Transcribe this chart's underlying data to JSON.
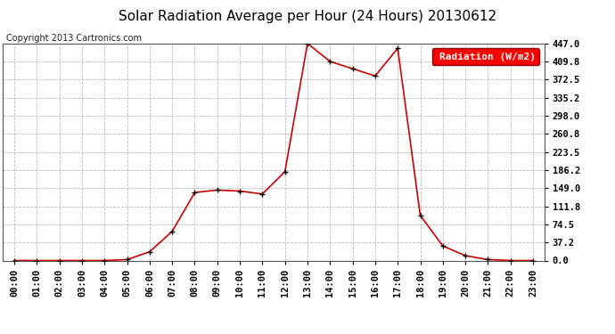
{
  "title": "Solar Radiation Average per Hour (24 Hours) 20130612",
  "copyright": "Copyright 2013 Cartronics.com",
  "legend_label": "Radiation (W/m2)",
  "hours": [
    "00:00",
    "01:00",
    "02:00",
    "03:00",
    "04:00",
    "05:00",
    "06:00",
    "07:00",
    "08:00",
    "09:00",
    "10:00",
    "11:00",
    "12:00",
    "13:00",
    "14:00",
    "15:00",
    "16:00",
    "17:00",
    "18:00",
    "19:00",
    "20:00",
    "21:00",
    "22:00",
    "23:00"
  ],
  "values": [
    0.0,
    0.0,
    0.0,
    0.0,
    0.0,
    2.0,
    18.0,
    60.0,
    140.0,
    145.0,
    143.0,
    137.0,
    183.0,
    447.0,
    409.8,
    395.0,
    380.0,
    437.0,
    93.0,
    30.0,
    10.0,
    2.0,
    0.0,
    0.0
  ],
  "line_color": "#cc0000",
  "marker_color": "#000000",
  "bg_color": "#ffffff",
  "grid_color": "#aaaaaa",
  "ytick_labels": [
    "0.0",
    "37.2",
    "74.5",
    "111.8",
    "149.0",
    "186.2",
    "223.5",
    "260.8",
    "298.0",
    "335.2",
    "372.5",
    "409.8",
    "447.0"
  ],
  "ytick_values": [
    0.0,
    37.2,
    74.5,
    111.8,
    149.0,
    186.2,
    223.5,
    260.8,
    298.0,
    335.2,
    372.5,
    409.8,
    447.0
  ],
  "ylim": [
    0.0,
    447.0
  ],
  "title_fontsize": 11,
  "copyright_fontsize": 7,
  "legend_fontsize": 8,
  "tick_fontsize": 7.5
}
